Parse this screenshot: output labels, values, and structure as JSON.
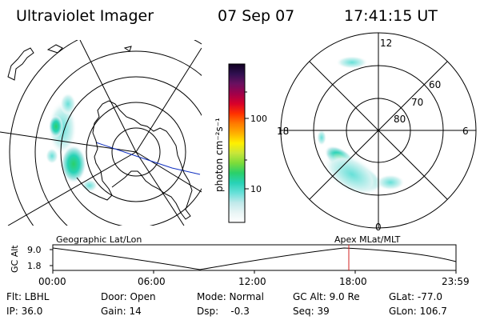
{
  "header": {
    "title": "Ultraviolet Imager",
    "date": "07 Sep 07",
    "time": "17:41:15 UT"
  },
  "colorbar": {
    "unit_label": "photon cm⁻²s⁻¹",
    "ticks": [
      "100",
      "10"
    ],
    "gradient": [
      "#ffffff",
      "#e8f5f5",
      "#bfe9ea",
      "#66e0d8",
      "#27d2b6",
      "#2ad06a",
      "#7ddc3a",
      "#c8e63a",
      "#fff000",
      "#ffb000",
      "#ff7a00",
      "#ff3000",
      "#d8002a",
      "#a0004a",
      "#6a1060",
      "#301050",
      "#100020"
    ]
  },
  "geo_map": {
    "label": "Geographic Lat/Lon"
  },
  "polar_map": {
    "label": "Apex MLat/MLT",
    "mlt_labels": {
      "top": "12",
      "left": "18",
      "right": "6",
      "bottom": "0"
    },
    "lat_labels": [
      "60",
      "70",
      "80"
    ]
  },
  "timeline": {
    "axis_label": "GC Alt",
    "y_ticks": [
      "9.0",
      "1.8"
    ],
    "x_ticks": [
      "00:00",
      "06:00",
      "12:00",
      "18:00",
      "23:59"
    ]
  },
  "info": {
    "col1": [
      "Flt: LBHL",
      "IP: 36.0"
    ],
    "col2": [
      "Door: Open",
      "Gain: 14"
    ],
    "col3": [
      "Mode: Normal",
      "Dsp:    -0.3"
    ],
    "col4": [
      "GC Alt: 9.0 Re",
      "Seq: 39"
    ],
    "col5": [
      "GLat: -77.0",
      "GLon: 106.7"
    ]
  }
}
